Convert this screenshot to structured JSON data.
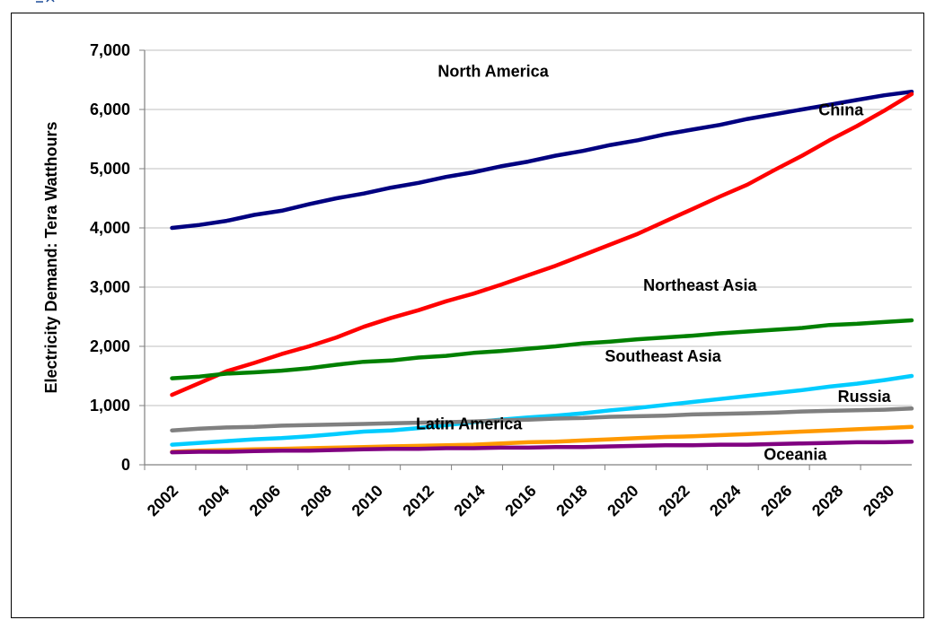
{
  "chart_data": {
    "type": "line",
    "ylabel": "Electricity Demand: Tera Watthours",
    "xlabel": "",
    "title": "",
    "ylim": [
      0,
      7000
    ],
    "yticks": [
      0,
      1000,
      2000,
      3000,
      4000,
      5000,
      6000,
      7000
    ],
    "ytick_labels": [
      "0",
      "1,000",
      "2,000",
      "3,000",
      "4,000",
      "5,000",
      "6,000",
      "7,000"
    ],
    "xlim": [
      2002,
      2030
    ],
    "x": [
      2003,
      2004,
      2005,
      2006,
      2007,
      2008,
      2009,
      2010,
      2011,
      2012,
      2013,
      2014,
      2015,
      2016,
      2017,
      2018,
      2019,
      2020,
      2021,
      2022,
      2023,
      2024,
      2025,
      2026,
      2027,
      2028,
      2029,
      2030
    ],
    "xtick_labels": [
      "2002",
      "2004",
      "2006",
      "2008",
      "2010",
      "2012",
      "2014",
      "2016",
      "2018",
      "2020",
      "2022",
      "2024",
      "2026",
      "2028",
      "2030"
    ],
    "grid": "horizontal",
    "legend": "inline labels",
    "series": [
      {
        "name": "North America",
        "color": "#000080",
        "values": [
          4000,
          4050,
          4120,
          4220,
          4290,
          4400,
          4500,
          4580,
          4680,
          4760,
          4860,
          4940,
          5040,
          5120,
          5220,
          5300,
          5400,
          5480,
          5580,
          5660,
          5740,
          5840,
          5920,
          6000,
          6080,
          6160,
          6240,
          6300
        ],
        "label_x": 2012.7,
        "label_y": 6550
      },
      {
        "name": "China",
        "color": "#ff0000",
        "values": [
          1180,
          1380,
          1580,
          1720,
          1870,
          2000,
          2150,
          2330,
          2480,
          2610,
          2760,
          2890,
          3040,
          3200,
          3360,
          3540,
          3720,
          3900,
          4110,
          4320,
          4530,
          4730,
          4980,
          5220,
          5480,
          5720,
          5980,
          6260
        ],
        "label_x": 2026.6,
        "label_y": 5900
      },
      {
        "name": "Northeast Asia",
        "color": "#008000",
        "values": [
          1460,
          1490,
          1540,
          1560,
          1590,
          1630,
          1690,
          1740,
          1760,
          1810,
          1840,
          1890,
          1920,
          1960,
          2000,
          2050,
          2080,
          2120,
          2150,
          2180,
          2220,
          2250,
          2280,
          2310,
          2360,
          2380,
          2410,
          2440
        ],
        "label_x": 2020.2,
        "label_y": 2940
      },
      {
        "name": "Southeast Asia",
        "color": "#00ccff",
        "values": [
          340,
          370,
          400,
          430,
          450,
          480,
          520,
          560,
          580,
          620,
          670,
          720,
          760,
          800,
          830,
          870,
          920,
          960,
          1010,
          1060,
          1110,
          1160,
          1210,
          1260,
          1320,
          1370,
          1430,
          1500
        ],
        "label_x": 2018.8,
        "label_y": 1740
      },
      {
        "name": "Russia",
        "color": "#808080",
        "values": [
          580,
          610,
          630,
          640,
          660,
          670,
          680,
          690,
          700,
          710,
          720,
          730,
          750,
          760,
          780,
          790,
          810,
          820,
          830,
          850,
          860,
          870,
          880,
          900,
          910,
          920,
          930,
          950
        ],
        "label_x": 2027.3,
        "label_y": 1060
      },
      {
        "name": "Latin America",
        "color": "#ff9900",
        "values": [
          220,
          240,
          250,
          260,
          270,
          280,
          290,
          300,
          310,
          320,
          330,
          340,
          360,
          380,
          390,
          410,
          430,
          450,
          470,
          480,
          500,
          520,
          540,
          560,
          580,
          600,
          620,
          640
        ],
        "label_x": 2011.9,
        "label_y": 600
      },
      {
        "name": "Oceania",
        "color": "#800080",
        "values": [
          210,
          220,
          220,
          230,
          240,
          240,
          250,
          260,
          270,
          270,
          280,
          280,
          290,
          290,
          300,
          300,
          310,
          320,
          330,
          330,
          340,
          340,
          350,
          360,
          370,
          380,
          380,
          390
        ],
        "label_x": 2024.6,
        "label_y": 80
      }
    ]
  }
}
